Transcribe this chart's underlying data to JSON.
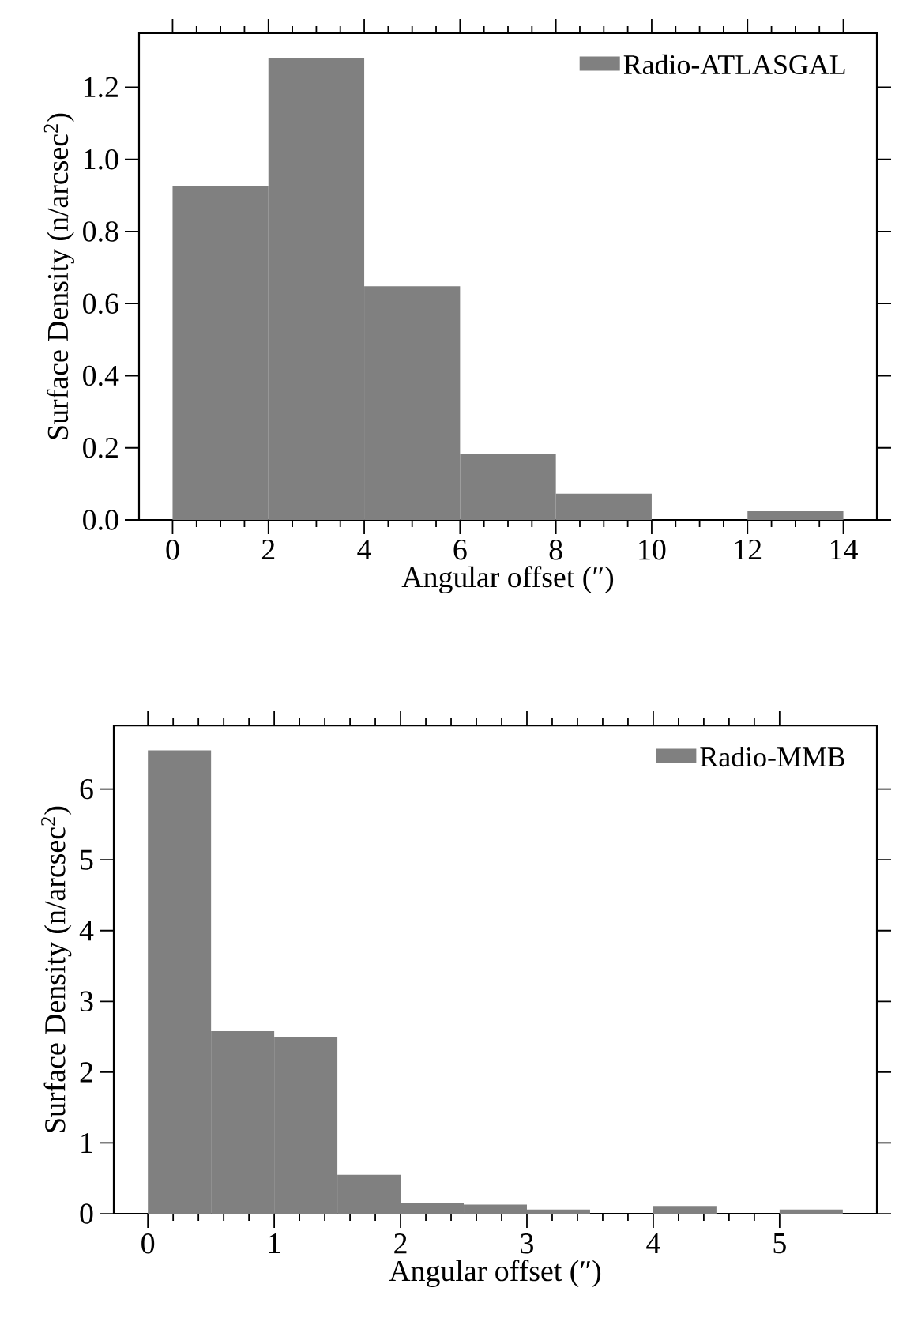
{
  "chart_data": [
    {
      "type": "histogram",
      "xlabel": "Angular offset (″)",
      "ylabel": "Surface Density (n/arcsec$^{2}$)",
      "legend": "top right",
      "bins": [
        0,
        2,
        4,
        6,
        8,
        10,
        12,
        14
      ],
      "series": [
        {
          "name": "Radio-ATLASGAL",
          "color": "#808080",
          "values": [
            0.927,
            1.28,
            0.648,
            0.184,
            0.073,
            0,
            0.024
          ]
        }
      ],
      "xlim": [
        -0.7,
        14.7
      ],
      "ylim": [
        0,
        1.35
      ],
      "xticks": [
        0,
        2,
        4,
        6,
        8,
        10,
        12,
        14
      ],
      "yticks": [
        {
          "value": 0,
          "label": "0.0"
        },
        0.2,
        0.4,
        0.6,
        0.8,
        {
          "value": 1,
          "label": "1.0"
        },
        1.2
      ]
    },
    {
      "type": "histogram",
      "xlabel": "Angular offset (″)",
      "ylabel": "Surface Density (n/arcsec$^{2}$)",
      "legend": "top right",
      "bins": [
        0,
        0.5,
        1,
        1.5,
        2,
        2.5,
        3,
        3.5,
        4,
        4.5,
        5,
        5.5
      ],
      "series": [
        {
          "name": "Radio-MMB",
          "color": "#808080",
          "values": [
            6.55,
            2.58,
            2.5,
            0.55,
            0.15,
            0.13,
            0.06,
            0,
            0.11,
            0,
            0.06
          ]
        }
      ],
      "xlim": [
        -0.27,
        5.77
      ],
      "ylim": [
        0,
        6.9
      ],
      "xticks": [
        0,
        1,
        2,
        3,
        4,
        5
      ],
      "yticks": [
        0,
        1,
        2,
        3,
        4,
        5,
        6
      ]
    }
  ]
}
